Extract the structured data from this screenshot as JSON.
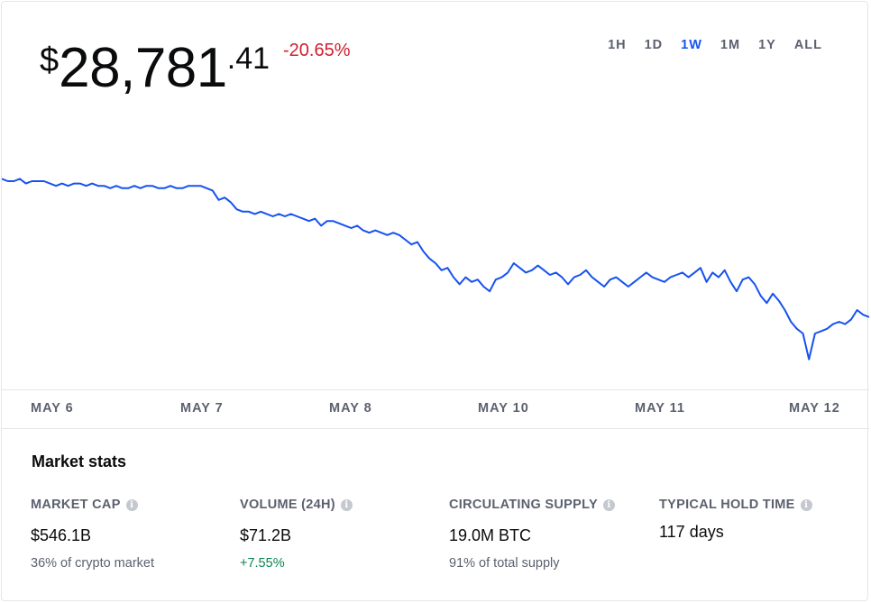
{
  "price": {
    "currency": "$",
    "whole": "28,781",
    "cents": ".41"
  },
  "change": "-20.65%",
  "ranges": [
    "1H",
    "1D",
    "1W",
    "1M",
    "1Y",
    "ALL"
  ],
  "active_range": "1W",
  "colors": {
    "line": "#1652f0",
    "negative": "#cf202f",
    "positive": "#098551",
    "active": "#1652f0"
  },
  "chart_data": {
    "type": "line",
    "x_ticks": [
      "MAY 6",
      "MAY 7",
      "MAY 8",
      "MAY 10",
      "MAY 11",
      "MAY 12"
    ],
    "series": [
      {
        "values": [
          0.86,
          0.85,
          0.85,
          0.86,
          0.84,
          0.85,
          0.85,
          0.85,
          0.84,
          0.83,
          0.84,
          0.83,
          0.84,
          0.84,
          0.83,
          0.84,
          0.83,
          0.83,
          0.82,
          0.83,
          0.82,
          0.82,
          0.83,
          0.82,
          0.83,
          0.83,
          0.82,
          0.82,
          0.83,
          0.82,
          0.82,
          0.83,
          0.83,
          0.83,
          0.82,
          0.81,
          0.77,
          0.78,
          0.76,
          0.73,
          0.72,
          0.72,
          0.71,
          0.72,
          0.71,
          0.7,
          0.71,
          0.7,
          0.71,
          0.7,
          0.69,
          0.68,
          0.69,
          0.66,
          0.68,
          0.68,
          0.67,
          0.66,
          0.65,
          0.66,
          0.64,
          0.63,
          0.64,
          0.63,
          0.62,
          0.63,
          0.62,
          0.6,
          0.58,
          0.59,
          0.55,
          0.52,
          0.5,
          0.47,
          0.48,
          0.44,
          0.41,
          0.44,
          0.42,
          0.43,
          0.4,
          0.38,
          0.43,
          0.44,
          0.46,
          0.5,
          0.48,
          0.46,
          0.47,
          0.49,
          0.47,
          0.45,
          0.46,
          0.44,
          0.41,
          0.44,
          0.45,
          0.47,
          0.44,
          0.42,
          0.4,
          0.43,
          0.44,
          0.42,
          0.4,
          0.42,
          0.44,
          0.46,
          0.44,
          0.43,
          0.42,
          0.44,
          0.45,
          0.46,
          0.44,
          0.46,
          0.48,
          0.42,
          0.46,
          0.44,
          0.47,
          0.42,
          0.38,
          0.43,
          0.44,
          0.41,
          0.36,
          0.33,
          0.37,
          0.34,
          0.3,
          0.25,
          0.22,
          0.2,
          0.09,
          0.2,
          0.21,
          0.22,
          0.24,
          0.25,
          0.24,
          0.26,
          0.3,
          0.28,
          0.27
        ]
      }
    ]
  },
  "stats": {
    "title": "Market stats",
    "items": [
      {
        "label": "MARKET CAP",
        "value": "$546.1B",
        "sub": "36% of crypto market",
        "sub_positive": false
      },
      {
        "label": "VOLUME (24H)",
        "value": "$71.2B",
        "sub": "+7.55%",
        "sub_positive": true
      },
      {
        "label": "CIRCULATING SUPPLY",
        "value": "19.0M BTC",
        "sub": "91% of total supply",
        "sub_positive": false
      },
      {
        "label": "TYPICAL HOLD TIME",
        "value": "117 days",
        "sub": "",
        "sub_positive": false
      }
    ]
  }
}
